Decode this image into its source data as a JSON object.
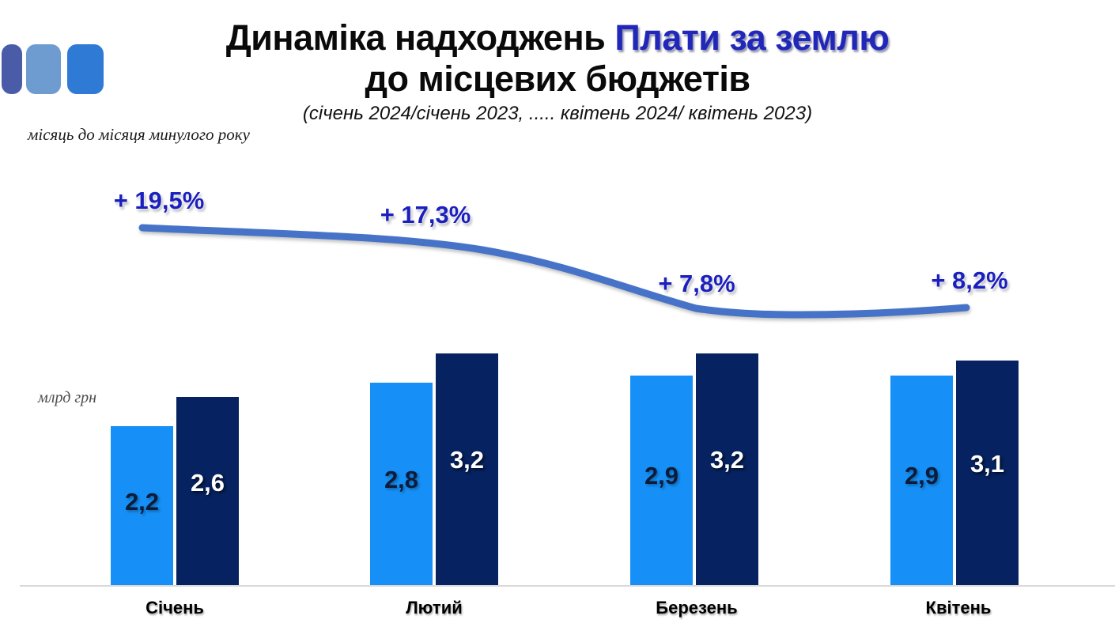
{
  "slide": {
    "title_black": "Динаміка надходжень",
    "title_blue": "Плати за землю",
    "title_line2": "до місцевих бюджетів",
    "subtitle": "(січень 2024/січень 2023, ..... квітень 2024/ квітень 2023)",
    "note_top": "місяць до місяця минулого року",
    "note_units": "млрд грн"
  },
  "colors": {
    "title_accent": "#2127b8",
    "growth_label": "#1a1fbe",
    "trend_line": "#4673c8",
    "bar_light": "#1690f6",
    "bar_dark": "#062260",
    "axis_line": "#d9d9d9",
    "logo_squares": [
      "#4a5ca8",
      "#6f9cd0",
      "#2e7ad5"
    ]
  },
  "chart_data": {
    "type": "bar",
    "title": "Динаміка надходжень Плати за землю до місцевих бюджетів",
    "subtitle": "(січень 2024/січень 2023, ..... квітень 2024/ квітень 2023)",
    "ylabel": "млрд грн",
    "categories": [
      "Січень",
      "Лютий",
      "Березень",
      "Квітень"
    ],
    "series": [
      {
        "name": "2023",
        "color": "#1690f6",
        "values": [
          2.2,
          2.8,
          2.9,
          2.9
        ],
        "labels": [
          "2,2",
          "2,8",
          "2,9",
          "2,9"
        ]
      },
      {
        "name": "2024",
        "color": "#062260",
        "values": [
          2.6,
          3.2,
          3.2,
          3.1
        ],
        "labels": [
          "2,6",
          "3,2",
          "3,2",
          "3,1"
        ]
      }
    ],
    "growth_line": {
      "note": "місяць до місяця минулого року",
      "values_pct": [
        19.5,
        17.3,
        7.8,
        8.2
      ],
      "labels": [
        "+ 19,5%",
        "+ 17,3%",
        "+ 7,8%",
        "+ 8,2%"
      ]
    },
    "legend": "none",
    "grid": "off",
    "ylim": [
      0,
      3.5
    ]
  }
}
